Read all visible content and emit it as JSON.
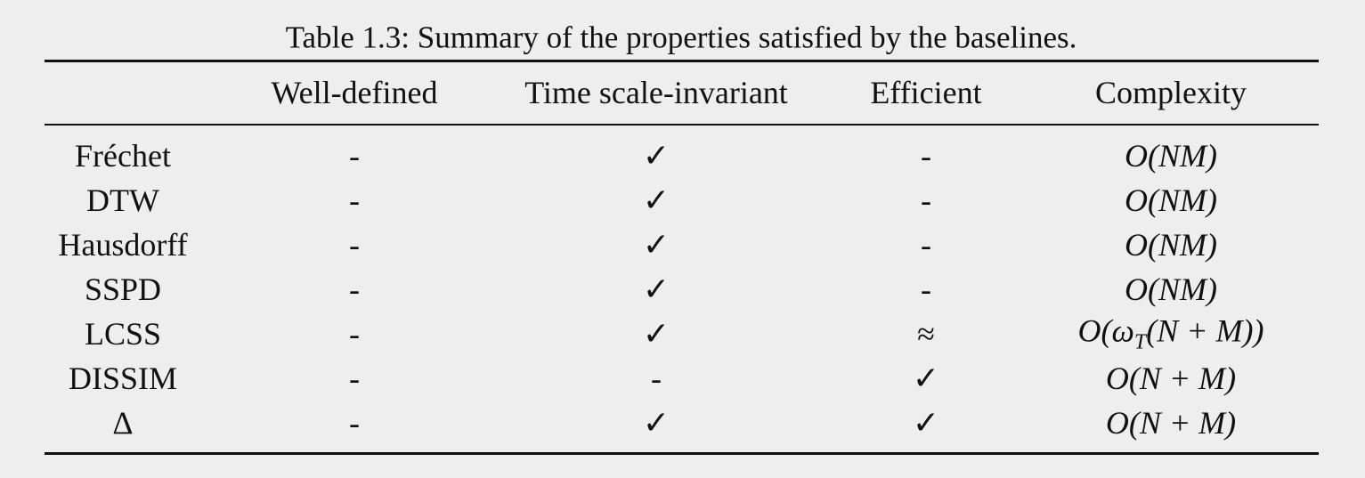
{
  "caption": "Table 1.3: Summary of the properties satisfied by the baselines.",
  "table": {
    "header": [
      "",
      "Well-defined",
      "Time scale-invariant",
      "Efficient",
      "Complexity"
    ],
    "rows": [
      [
        "Fréchet",
        "-",
        "✓",
        "-",
        "O(NM)"
      ],
      [
        "DTW",
        "-",
        "✓",
        "-",
        "O(NM)"
      ],
      [
        "Hausdorff",
        "-",
        "✓",
        "-",
        "O(NM)"
      ],
      [
        "SSPD",
        "-",
        "✓",
        "-",
        "O(NM)"
      ],
      [
        "LCSS",
        "-",
        "✓",
        "≈",
        {
          "before": "O(ω",
          "sub": "T",
          "after": "(N + M))"
        }
      ],
      [
        "DISSIM",
        "-",
        "-",
        "✓",
        "O(N + M)"
      ],
      [
        "Δ",
        "-",
        "✓",
        "✓",
        "O(N + M)"
      ]
    ]
  }
}
